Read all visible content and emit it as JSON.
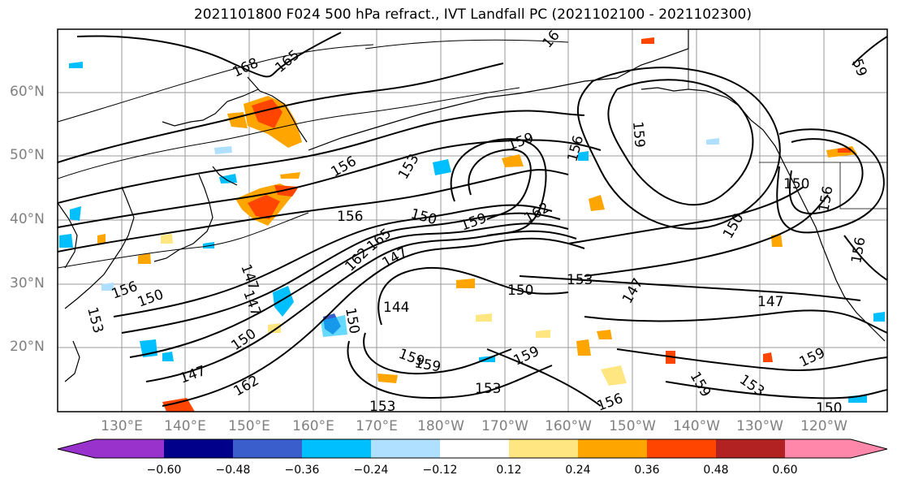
{
  "title": "2021101800 F024 500 hPa refract., IVT Landfall PC (2021102100 - 2021102300)",
  "lat_labels": [
    "60°N",
    "50°N",
    "40°N",
    "30°N",
    "20°N"
  ],
  "lon_labels": [
    "130°E",
    "140°E",
    "150°E",
    "160°E",
    "170°E",
    "180°W",
    "170°W",
    "160°W",
    "150°W",
    "140°W",
    "130°W",
    "120°W"
  ],
  "colorbar": {
    "ticks": [
      "−0.60",
      "−0.48",
      "−0.36",
      "−0.24",
      "−0.12",
      "0.12",
      "0.24",
      "0.36",
      "0.48",
      "0.60"
    ],
    "colors": [
      "#9932cc",
      "#00008b",
      "#3a5fcd",
      "#00bfff",
      "#b0e0ff",
      "#ffffff",
      "#ffe680",
      "#ffa500",
      "#ff4500",
      "#b22222",
      "#ff88aa"
    ]
  },
  "contour_labels": [
    "168",
    "165",
    "16",
    "59",
    "159",
    "156",
    "153",
    "156",
    "159",
    "150",
    "156",
    "150",
    "156",
    "162",
    "159",
    "165",
    "162",
    "147",
    "153",
    "150",
    "156",
    "147",
    "153",
    "150",
    "144",
    "150",
    "147",
    "147",
    "150",
    "147",
    "162",
    "159",
    "159",
    "153",
    "159",
    "153",
    "156",
    "159",
    "147",
    "159",
    "153",
    "150",
    "156",
    "150"
  ]
}
